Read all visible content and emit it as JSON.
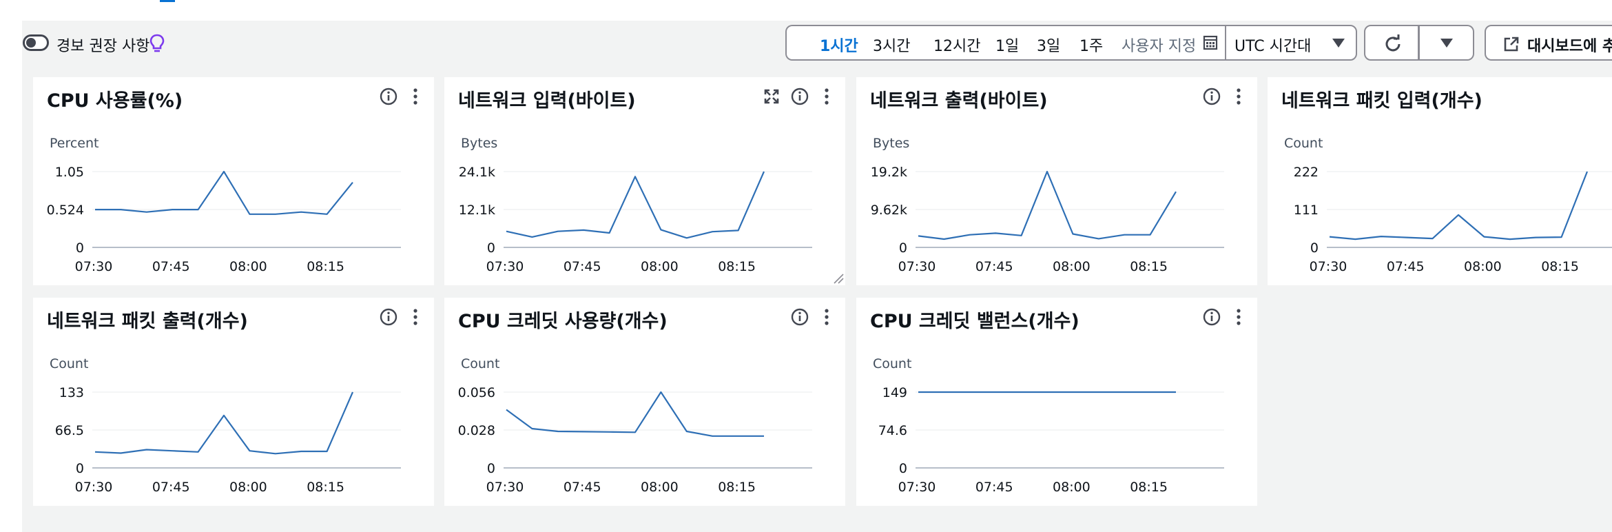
{
  "toolbar": {
    "alarm_toggle_label": "경보 권장 사항",
    "ranges": [
      "1시간",
      "3시간",
      "12시간",
      "1일",
      "3일",
      "1주"
    ],
    "active_range": "1시간",
    "custom_label": "사용자 지정",
    "timezone_label": "UTC 시간대",
    "add_dashboard_label": "대시보드에 추",
    "accent_color": "#0972d3"
  },
  "icons": {
    "toggle": "toggle-icon",
    "bulb": "lightbulb-icon",
    "calendar": "calendar-icon",
    "refresh": "refresh-icon",
    "caret": "caret-down-icon",
    "external": "external-link-icon",
    "info": "info-icon",
    "more": "more-vertical-icon",
    "expand": "expand-icon"
  },
  "widgets": [
    {
      "title": "CPU 사용률(%)",
      "chart_data": {
        "type": "line",
        "ylabel": "Percent",
        "yticks": [
          "1.05",
          "0.524",
          "0"
        ],
        "ymax": 1.05,
        "xticks": [
          "07:30",
          "07:45",
          "08:00",
          "08:15"
        ],
        "x": [
          "07:30",
          "07:35",
          "07:40",
          "07:45",
          "07:50",
          "07:55",
          "08:00",
          "08:05",
          "08:10",
          "08:15",
          "08:20"
        ],
        "series": [
          {
            "values": [
              0.524,
              0.524,
              0.49,
              0.524,
              0.524,
              1.05,
              0.46,
              0.46,
              0.49,
              0.46,
              0.9
            ]
          }
        ],
        "color": "#2e6fb5"
      }
    },
    {
      "title": "네트워크 입력(바이트)",
      "chart_data": {
        "type": "line",
        "ylabel": "Bytes",
        "yticks": [
          "24.1k",
          "12.1k",
          "0"
        ],
        "ymax": 24100,
        "xticks": [
          "07:30",
          "07:45",
          "08:00",
          "08:15"
        ],
        "x": [
          "07:30",
          "07:35",
          "07:40",
          "07:45",
          "07:50",
          "07:55",
          "08:00",
          "08:05",
          "08:10",
          "08:15",
          "08:20"
        ],
        "series": [
          {
            "values": [
              5100,
              3300,
              5100,
              5500,
              4600,
              22500,
              5600,
              3000,
              5000,
              5400,
              24100
            ]
          }
        ],
        "color": "#2e6fb5"
      }
    },
    {
      "title": "네트워크 출력(바이트)",
      "chart_data": {
        "type": "line",
        "ylabel": "Bytes",
        "yticks": [
          "19.2k",
          "9.62k",
          "0"
        ],
        "ymax": 19200,
        "xticks": [
          "07:30",
          "07:45",
          "08:00",
          "08:15"
        ],
        "x": [
          "07:30",
          "07:35",
          "07:40",
          "07:45",
          "07:50",
          "07:55",
          "08:00",
          "08:05",
          "08:10",
          "08:15",
          "08:20"
        ],
        "series": [
          {
            "values": [
              2900,
              2100,
              3200,
              3600,
              3000,
              19200,
              3400,
              2200,
              3200,
              3200,
              14100
            ]
          }
        ],
        "color": "#2e6fb5"
      }
    },
    {
      "title": "네트워크 패킷 입력(개수)",
      "chart_data": {
        "type": "line",
        "ylabel": "Count",
        "yticks": [
          "222",
          "111",
          "0"
        ],
        "ymax": 222,
        "xticks": [
          "07:30",
          "07:45",
          "08:00",
          "08:15"
        ],
        "x": [
          "07:30",
          "07:35",
          "07:40",
          "07:45",
          "07:50",
          "07:55",
          "08:00",
          "08:05",
          "08:10",
          "08:15",
          "08:20"
        ],
        "series": [
          {
            "values": [
              31,
              24,
              32,
              29,
              26,
              95,
              31,
              24,
              29,
              30,
              222
            ]
          }
        ],
        "color": "#2e6fb5"
      }
    },
    {
      "title": "네트워크 패킷 출력(개수)",
      "chart_data": {
        "type": "line",
        "ylabel": "Count",
        "yticks": [
          "133",
          "66.5",
          "0"
        ],
        "ymax": 133,
        "xticks": [
          "07:30",
          "07:45",
          "08:00",
          "08:15"
        ],
        "x": [
          "07:30",
          "07:35",
          "07:40",
          "07:45",
          "07:50",
          "07:55",
          "08:00",
          "08:05",
          "08:10",
          "08:15",
          "08:20"
        ],
        "series": [
          {
            "values": [
              28,
              26,
              32,
              30,
              28,
              92,
              30,
              25,
              29,
              29,
              133
            ]
          }
        ],
        "color": "#2e6fb5"
      }
    },
    {
      "title": "CPU 크레딧 사용량(개수)",
      "chart_data": {
        "type": "line",
        "ylabel": "Count",
        "yticks": [
          "0.056",
          "0.028",
          "0"
        ],
        "ymax": 0.056,
        "xticks": [
          "07:30",
          "07:45",
          "08:00",
          "08:15"
        ],
        "x": [
          "07:30",
          "07:35",
          "07:40",
          "07:45",
          "07:50",
          "07:55",
          "08:00",
          "08:05",
          "08:10",
          "08:15",
          "08:20"
        ],
        "series": [
          {
            "values": [
              0.043,
              0.029,
              0.027,
              0.0268,
              0.0266,
              0.0263,
              0.056,
              0.027,
              0.0235,
              0.0235,
              0.0235
            ]
          }
        ],
        "color": "#2e6fb5"
      }
    },
    {
      "title": "CPU 크레딧 밸런스(개수)",
      "chart_data": {
        "type": "line",
        "ylabel": "Count",
        "yticks": [
          "149",
          "74.6",
          "0"
        ],
        "ymax": 149,
        "xticks": [
          "07:30",
          "07:45",
          "08:00",
          "08:15"
        ],
        "x": [
          "07:30",
          "07:35",
          "07:40",
          "07:45",
          "07:50",
          "07:55",
          "08:00",
          "08:05",
          "08:10",
          "08:15",
          "08:20"
        ],
        "series": [
          {
            "values": [
              149,
              149,
              149,
              149,
              149,
              149,
              149,
              149,
              149,
              149,
              149
            ]
          }
        ],
        "color": "#2e6fb5"
      }
    }
  ]
}
